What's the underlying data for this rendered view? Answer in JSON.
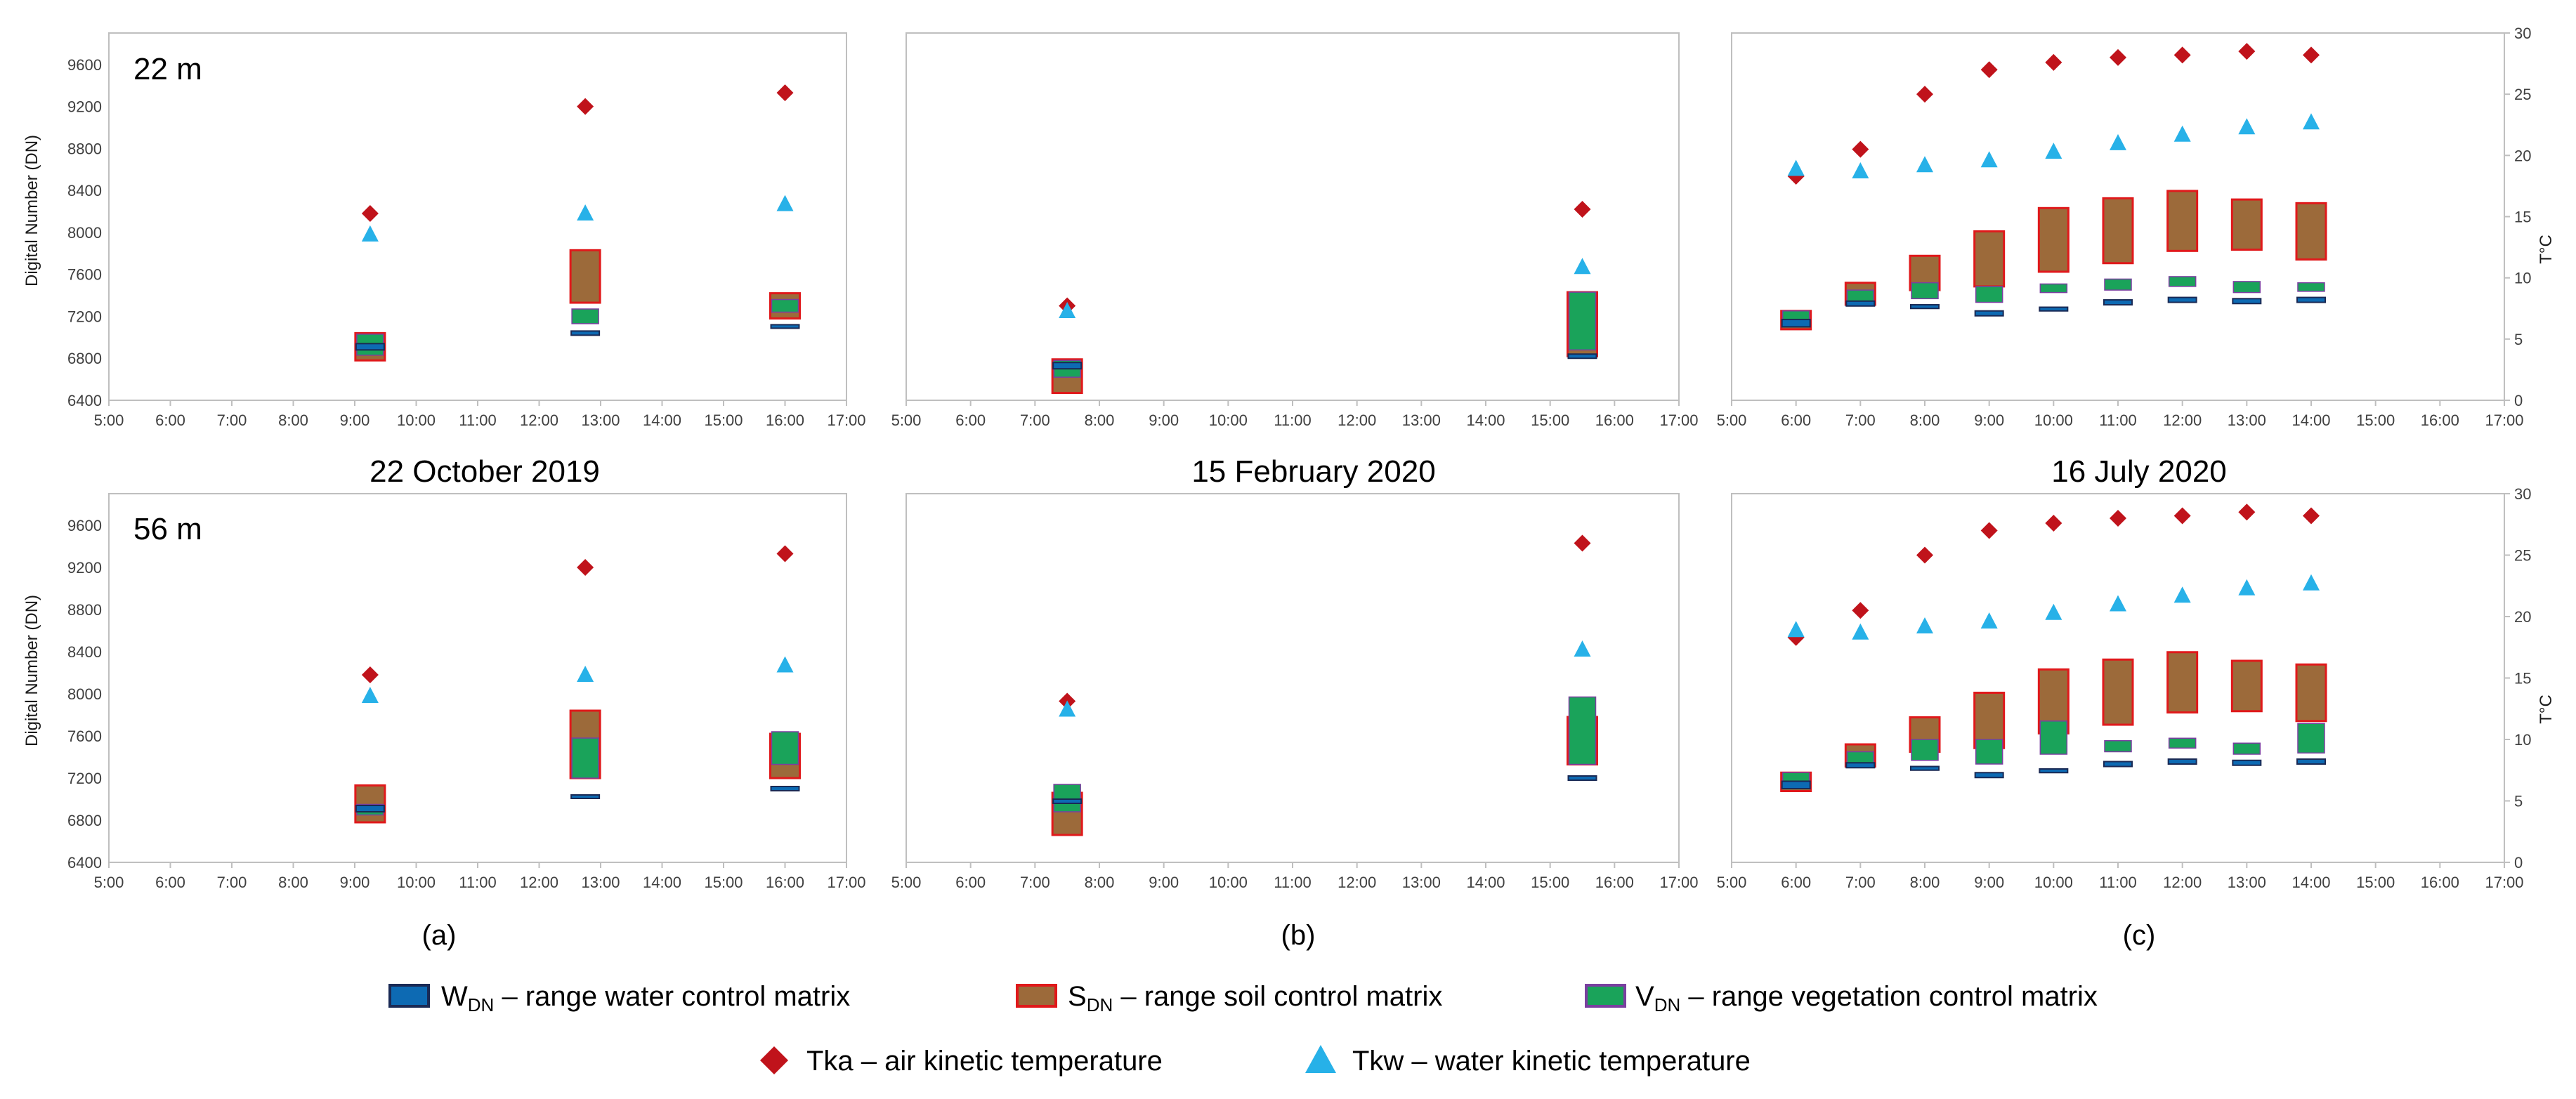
{
  "figure": {
    "y_axis_label": "Digital Number (DN)",
    "y2_axis_label": "T°C",
    "depth_labels": [
      "22 m",
      "56 m"
    ],
    "date_labels": [
      "22 October 2019",
      "15 February 2020",
      "16 July 2020"
    ],
    "panel_letters": [
      "(a)",
      "(b)",
      "(c)"
    ]
  },
  "legend": {
    "items": [
      {
        "key": "W",
        "label_main": "W",
        "label_sub": "DN",
        "label_rest": " – range water control matrix"
      },
      {
        "key": "S",
        "label_main": "S",
        "label_sub": "DN",
        "label_rest": " – range soil control matrix"
      },
      {
        "key": "V",
        "label_main": "V",
        "label_sub": "DN",
        "label_rest": " – range vegetation control matrix"
      },
      {
        "key": "Tka",
        "label_main": "Tka – air kinetic temperature",
        "label_sub": "",
        "label_rest": ""
      },
      {
        "key": "Tkw",
        "label_main": "Tkw – water kinetic temperature",
        "label_sub": "",
        "label_rest": ""
      }
    ]
  },
  "chart_data": {
    "type": "range-box-scatter",
    "colors": {
      "water_fill": "#0d6ab3",
      "water_edge": "#1a2a55",
      "soil_fill": "#9c6a3a",
      "soil_edge": "#e0191b",
      "veg_fill": "#1aa35a",
      "veg_edge": "#7a3fa0",
      "tka": "#c0131b",
      "tkw": "#27b1e8"
    },
    "x_ticks": [
      "5:00",
      "6:00",
      "7:00",
      "8:00",
      "9:00",
      "10:00",
      "11:00",
      "12:00",
      "13:00",
      "14:00",
      "15:00",
      "16:00",
      "17:00"
    ],
    "xlim_hours": [
      5,
      17
    ],
    "y_ticks": [
      6400,
      6800,
      7200,
      7600,
      8000,
      8400,
      8800,
      9200,
      9600
    ],
    "ylim": [
      6400,
      9900
    ],
    "y2_ticks": [
      0,
      5,
      10,
      15,
      20,
      25,
      30
    ],
    "y2lim": [
      0,
      30
    ],
    "panels": [
      {
        "row": 0,
        "col": 0,
        "depth": "22 m",
        "date": "22 October 2019",
        "times": [
          9.25,
          12.75,
          16.0
        ],
        "soil": [
          [
            6780,
            7040
          ],
          [
            7330,
            7830
          ],
          [
            7180,
            7420
          ]
        ],
        "veg": [
          [
            6830,
            7030
          ],
          [
            7130,
            7270
          ],
          [
            7240,
            7360
          ]
        ],
        "water": [
          [
            6880,
            6940
          ],
          [
            7020,
            7060
          ],
          [
            7090,
            7120
          ]
        ],
        "tka_dn": [
          8180,
          9200,
          9330
        ],
        "tkw_dn": [
          7980,
          8180,
          8270
        ]
      },
      {
        "row": 0,
        "col": 1,
        "depth": "22 m",
        "date": "15 February 2020",
        "times": [
          7.5,
          15.5
        ],
        "soil": [
          [
            6470,
            6790
          ],
          [
            6820,
            7430
          ]
        ],
        "veg": [
          [
            6620,
            6780
          ],
          [
            6880,
            7430
          ]
        ],
        "water": [
          [
            6700,
            6760
          ],
          [
            6800,
            6840
          ]
        ],
        "tka_dn": [
          7300,
          8220
        ],
        "tkw_dn": [
          7250,
          7670
        ]
      },
      {
        "row": 0,
        "col": 2,
        "depth": "22 m",
        "date": "16 July 2020",
        "times": [
          6,
          7,
          8,
          9,
          10,
          11,
          12,
          13,
          14
        ],
        "soil": [
          [
            5.8,
            7.3
          ],
          [
            7.8,
            9.6
          ],
          [
            9,
            11.8
          ],
          [
            9.3,
            13.8
          ],
          [
            10.5,
            15.7
          ],
          [
            11.2,
            16.5
          ],
          [
            12.2,
            17.1
          ],
          [
            12.3,
            16.4
          ],
          [
            11.5,
            16.1
          ]
        ],
        "veg": [
          [
            6.5,
            7.3
          ],
          [
            8.0,
            9.0
          ],
          [
            8.3,
            9.6
          ],
          [
            8.0,
            9.3
          ],
          [
            8.8,
            9.5
          ],
          [
            9.0,
            9.9
          ],
          [
            9.3,
            10.1
          ],
          [
            8.8,
            9.7
          ],
          [
            8.9,
            9.6
          ]
        ],
        "water": [
          [
            6.0,
            6.6
          ],
          [
            7.7,
            8.1
          ],
          [
            7.5,
            7.8
          ],
          [
            6.9,
            7.3
          ],
          [
            7.3,
            7.6
          ],
          [
            7.8,
            8.2
          ],
          [
            8.0,
            8.4
          ],
          [
            7.9,
            8.3
          ],
          [
            8.0,
            8.4
          ]
        ],
        "tka": [
          18.3,
          20.5,
          25,
          27,
          27.6,
          28,
          28.2,
          28.5,
          28.2
        ],
        "tkw": [
          18.9,
          18.7,
          19.2,
          19.6,
          20.3,
          21,
          21.7,
          22.3,
          22.7
        ]
      },
      {
        "row": 1,
        "col": 0,
        "depth": "56 m",
        "date": "22 October 2019",
        "times": [
          9.25,
          12.75,
          16.0
        ],
        "soil": [
          [
            6780,
            7130
          ],
          [
            7200,
            7840
          ],
          [
            7200,
            7620
          ]
        ],
        "veg": [
          [
            6850,
            6950
          ],
          [
            7200,
            7580
          ],
          [
            7330,
            7640
          ]
        ],
        "water": [
          [
            6880,
            6940
          ],
          [
            7020,
            7040
          ],
          [
            7080,
            7120
          ]
        ],
        "tka_dn": [
          8180,
          9200,
          9330
        ],
        "tkw_dn": [
          7980,
          8180,
          8270
        ]
      },
      {
        "row": 1,
        "col": 1,
        "depth": "56 m",
        "date": "15 February 2020",
        "times": [
          7.5,
          15.5
        ],
        "soil": [
          [
            6660,
            7060
          ],
          [
            7330,
            7780
          ]
        ],
        "veg": [
          [
            6880,
            7140
          ],
          [
            7330,
            7970
          ]
        ],
        "water": [
          [
            6960,
            7000
          ],
          [
            7180,
            7220
          ]
        ],
        "tka_dn": [
          7930,
          9430
        ],
        "tkw_dn": [
          7850,
          8420
        ]
      },
      {
        "row": 1,
        "col": 2,
        "depth": "56 m",
        "date": "16 July 2020",
        "times": [
          6,
          7,
          8,
          9,
          10,
          11,
          12,
          13,
          14
        ],
        "soil": [
          [
            5.8,
            7.3
          ],
          [
            7.8,
            9.6
          ],
          [
            9,
            11.8
          ],
          [
            9.3,
            13.8
          ],
          [
            10.5,
            15.7
          ],
          [
            11.2,
            16.5
          ],
          [
            12.2,
            17.1
          ],
          [
            12.3,
            16.4
          ],
          [
            11.5,
            16.1
          ]
        ],
        "veg": [
          [
            6.5,
            7.3
          ],
          [
            8.0,
            9.0
          ],
          [
            8.3,
            10.0
          ],
          [
            8.0,
            10.0
          ],
          [
            8.8,
            11.5
          ],
          [
            9.0,
            9.9
          ],
          [
            9.3,
            10.1
          ],
          [
            8.8,
            9.7
          ],
          [
            8.9,
            11.3
          ]
        ],
        "water": [
          [
            6.0,
            6.6
          ],
          [
            7.7,
            8.1
          ],
          [
            7.5,
            7.8
          ],
          [
            6.9,
            7.3
          ],
          [
            7.3,
            7.6
          ],
          [
            7.8,
            8.2
          ],
          [
            8.0,
            8.4
          ],
          [
            7.9,
            8.3
          ],
          [
            8.0,
            8.4
          ]
        ],
        "tka": [
          18.3,
          20.5,
          25,
          27,
          27.6,
          28,
          28.2,
          28.5,
          28.2
        ],
        "tkw": [
          18.9,
          18.7,
          19.2,
          19.6,
          20.3,
          21,
          21.7,
          22.3,
          22.7
        ]
      }
    ]
  }
}
